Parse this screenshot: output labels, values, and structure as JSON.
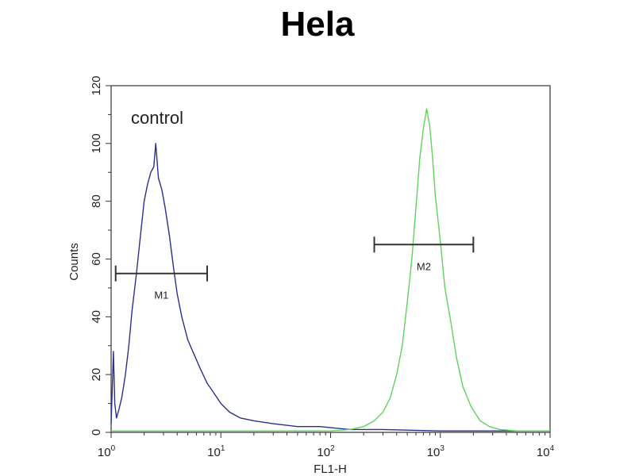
{
  "title": "Hela",
  "chart_data": {
    "type": "line",
    "title": "Hela",
    "xlabel": "FL1-H",
    "ylabel": "Counts",
    "xscale": "log",
    "xlim": [
      1,
      10000
    ],
    "ylim": [
      0,
      120
    ],
    "grid": false,
    "x_ticks": [
      {
        "value": 1,
        "base": "10",
        "exp": "0"
      },
      {
        "value": 10,
        "base": "10",
        "exp": "1"
      },
      {
        "value": 100,
        "base": "10",
        "exp": "2"
      },
      {
        "value": 1000,
        "base": "10",
        "exp": "3"
      },
      {
        "value": 10000,
        "base": "10",
        "exp": "4"
      }
    ],
    "y_ticks": [
      0,
      20,
      40,
      60,
      80,
      100,
      120
    ],
    "annotation": "control",
    "markers": [
      {
        "label": "M1",
        "x_range": [
          1.1,
          7.5
        ],
        "y": 55
      },
      {
        "label": "M2",
        "x_range": [
          250,
          2000
        ],
        "y": 65
      }
    ],
    "series": [
      {
        "color": "#2b2f8f",
        "points": [
          [
            1.0,
            3
          ],
          [
            1.05,
            28
          ],
          [
            1.08,
            10
          ],
          [
            1.12,
            5
          ],
          [
            1.18,
            8
          ],
          [
            1.25,
            12
          ],
          [
            1.35,
            20
          ],
          [
            1.45,
            30
          ],
          [
            1.55,
            42
          ],
          [
            1.7,
            55
          ],
          [
            1.85,
            68
          ],
          [
            2.0,
            80
          ],
          [
            2.15,
            86
          ],
          [
            2.3,
            90
          ],
          [
            2.45,
            92
          ],
          [
            2.55,
            100
          ],
          [
            2.7,
            88
          ],
          [
            2.9,
            84
          ],
          [
            3.1,
            78
          ],
          [
            3.4,
            68
          ],
          [
            3.7,
            57
          ],
          [
            4.0,
            48
          ],
          [
            4.4,
            40
          ],
          [
            5.0,
            32
          ],
          [
            5.7,
            27
          ],
          [
            6.5,
            22
          ],
          [
            7.5,
            17
          ],
          [
            8.5,
            14
          ],
          [
            10,
            10
          ],
          [
            12,
            7
          ],
          [
            15,
            5
          ],
          [
            20,
            4
          ],
          [
            30,
            3
          ],
          [
            50,
            2
          ],
          [
            80,
            2
          ],
          [
            150,
            1
          ],
          [
            300,
            1
          ],
          [
            1000,
            0.5
          ],
          [
            5000,
            0.5
          ],
          [
            10000,
            0.5
          ]
        ]
      },
      {
        "color": "#5fd35f",
        "points": [
          [
            1.0,
            0.5
          ],
          [
            100,
            0.5
          ],
          [
            150,
            1
          ],
          [
            200,
            2
          ],
          [
            250,
            4
          ],
          [
            300,
            7
          ],
          [
            350,
            12
          ],
          [
            400,
            20
          ],
          [
            450,
            30
          ],
          [
            500,
            45
          ],
          [
            550,
            60
          ],
          [
            600,
            78
          ],
          [
            650,
            95
          ],
          [
            700,
            105
          ],
          [
            750,
            112
          ],
          [
            800,
            106
          ],
          [
            850,
            95
          ],
          [
            900,
            82
          ],
          [
            1000,
            66
          ],
          [
            1100,
            50
          ],
          [
            1250,
            38
          ],
          [
            1400,
            26
          ],
          [
            1600,
            16
          ],
          [
            1900,
            9
          ],
          [
            2300,
            4
          ],
          [
            2800,
            2
          ],
          [
            3500,
            1
          ],
          [
            5000,
            0.5
          ],
          [
            10000,
            0.5
          ]
        ]
      }
    ]
  }
}
